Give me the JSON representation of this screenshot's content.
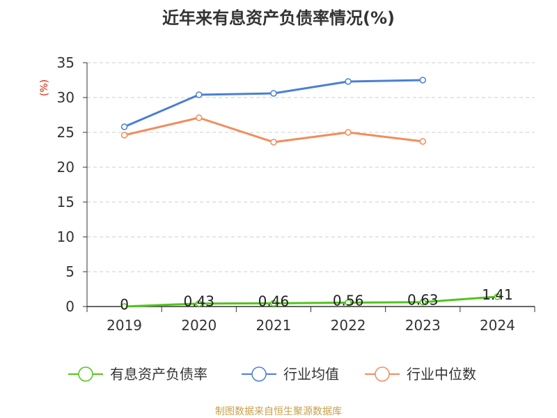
{
  "chart_data": {
    "type": "line",
    "title": "近年来有息资产负债率情况(%)",
    "ylabel": "(%)",
    "categories": [
      "2019",
      "2020",
      "2021",
      "2022",
      "2023",
      "2024"
    ],
    "ylim": [
      0,
      35
    ],
    "yticks": [
      0,
      5,
      10,
      15,
      20,
      25,
      30,
      35
    ],
    "grid": true,
    "legend_position": "bottom",
    "series": [
      {
        "name": "有息资产负债率",
        "color": "#52c41a",
        "values": [
          0,
          0.43,
          0.46,
          0.56,
          0.63,
          1.41
        ],
        "labels": [
          "0",
          "0.43",
          "0.46",
          "0.56",
          "0.63",
          "1.41"
        ]
      },
      {
        "name": "行业均值",
        "color": "#4a7fd4",
        "values": [
          25.8,
          30.4,
          30.6,
          32.3,
          32.5,
          null
        ]
      },
      {
        "name": "行业中位数",
        "color": "#f28c5c",
        "values": [
          24.6,
          27.1,
          23.6,
          25.0,
          23.7,
          null
        ]
      }
    ],
    "source": "制图数据来自恒生聚源数据库"
  }
}
